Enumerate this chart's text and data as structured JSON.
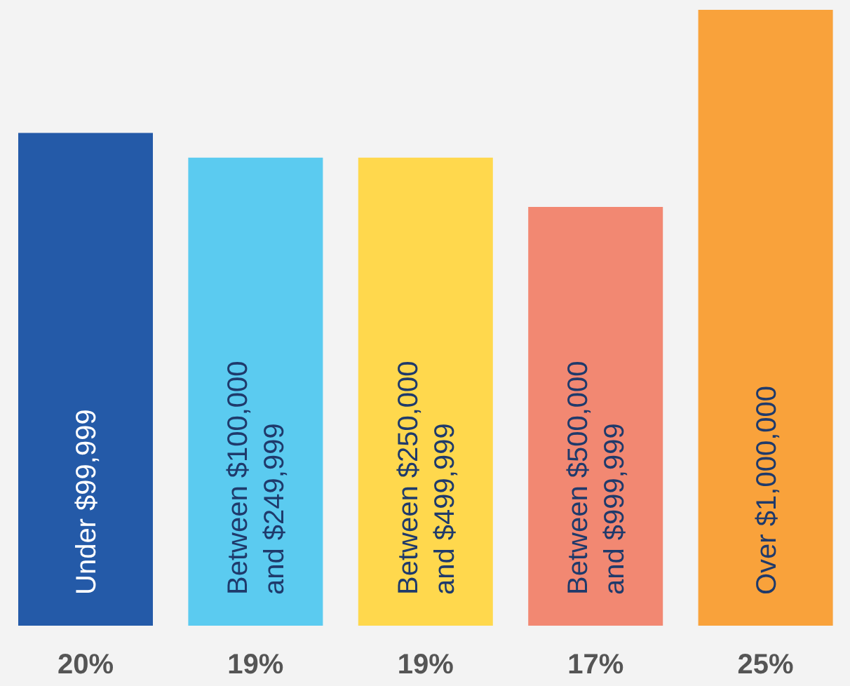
{
  "chart_data": {
    "type": "bar",
    "categories": [
      "Under $99,999",
      "Between $100,000 and $249,999",
      "Between $250,000 and $499,999",
      "Between $500,000 and $999,999",
      "Over $1,000,000"
    ],
    "values": [
      20,
      19,
      19,
      17,
      25
    ],
    "colors": [
      "#245aa8",
      "#5bcbf0",
      "#ffd84d",
      "#f28872",
      "#f9a23b"
    ],
    "value_labels": [
      "20%",
      "19%",
      "19%",
      "17%",
      "25%"
    ]
  }
}
